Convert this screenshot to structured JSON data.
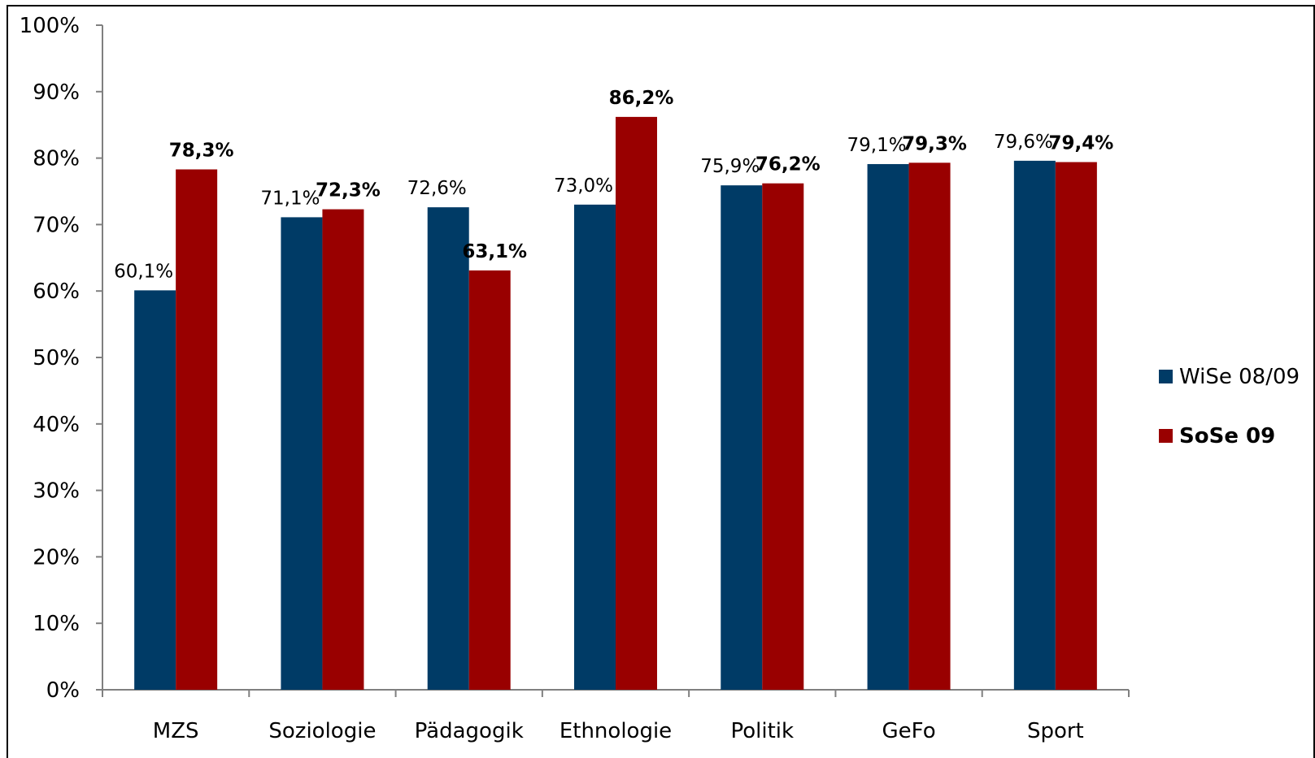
{
  "chart_data": {
    "type": "bar",
    "categories": [
      "MZS",
      "Soziologie",
      "Pädagogik",
      "Ethnologie",
      "Politik",
      "GeFo",
      "Sport"
    ],
    "series": [
      {
        "name": "WiSe 08/09",
        "color": "#003b66",
        "values": [
          60.1,
          71.1,
          72.6,
          73.0,
          75.9,
          79.1,
          79.6
        ],
        "labels": [
          "60,1%",
          "71,1%",
          "72,6%",
          "73,0%",
          "75,9%",
          "79,1%",
          "79,6%"
        ],
        "label_bold": false
      },
      {
        "name": "SoSe 09",
        "color": "#990000",
        "values": [
          78.3,
          72.3,
          63.1,
          86.2,
          76.2,
          79.3,
          79.4
        ],
        "labels": [
          "78,3%",
          "72,3%",
          "63,1%",
          "86,2%",
          "76,2%",
          "79,3%",
          "79,4%"
        ],
        "label_bold": true
      }
    ],
    "ylim": [
      0,
      100
    ],
    "yticks": [
      "0%",
      "10%",
      "20%",
      "30%",
      "40%",
      "50%",
      "60%",
      "70%",
      "80%",
      "90%",
      "100%"
    ],
    "grid": false,
    "legend_position": "right"
  }
}
